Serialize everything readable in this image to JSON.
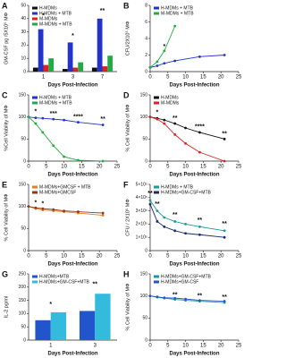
{
  "chart_data": [
    {
      "panel": "A",
      "type": "bar",
      "ylabel": "GM-CSF pg /5X10⁵ MΦ",
      "xlabel": "Days Post-Infection",
      "categories": [
        "1",
        "3",
        "7"
      ],
      "ylim": [
        0,
        50
      ],
      "yticks": [
        0,
        10,
        20,
        30,
        40,
        50
      ],
      "series": [
        {
          "name": "H-MDMs",
          "color": "#111111",
          "values": [
            3,
            2,
            3
          ]
        },
        {
          "name": "H-MDMs + MTB",
          "color": "#2233cc",
          "values": [
            32,
            22,
            40
          ]
        },
        {
          "name": "M-MDMs",
          "color": "#dd2222",
          "values": [
            5,
            3,
            4
          ]
        },
        {
          "name": "M-MDMs + MTB",
          "color": "#22aa44",
          "values": [
            10,
            7,
            12
          ]
        }
      ],
      "annotations": [
        {
          "text": "*",
          "x": "1",
          "y": 42
        },
        {
          "text": "*",
          "x": "3",
          "y": 27
        },
        {
          "text": "**",
          "x": "7",
          "y": 46
        }
      ]
    },
    {
      "panel": "B",
      "type": "line",
      "ylabel": "CFU/2X10⁵ MΦ",
      "xlabel": "Days Post-Infection",
      "x": [
        0,
        2,
        4,
        7,
        14,
        21
      ],
      "xlim": [
        0,
        25
      ],
      "xticks": [
        0,
        5,
        10,
        15,
        20,
        25
      ],
      "ylim": [
        0,
        8
      ],
      "yticks": [
        0,
        2,
        4,
        6,
        8
      ],
      "series": [
        {
          "name": "H-MDMs + MTB",
          "color": "#2233cc",
          "values": [
            0.5,
            0.7,
            1,
            1.3,
            1.8,
            2
          ]
        },
        {
          "name": "M-MDMs + MTB",
          "color": "#22aa44",
          "values": [
            0.5,
            1.2,
            2.5,
            5.5,
            null,
            null
          ]
        }
      ],
      "annotations": [
        {
          "text": "*",
          "x": 4,
          "y": 3
        }
      ]
    },
    {
      "panel": "C",
      "type": "line",
      "ylabel": "%Cell Viability of MΦ",
      "xlabel": "Days Post-Infection",
      "x": [
        0,
        2,
        4,
        7,
        10,
        14,
        21
      ],
      "xlim": [
        0,
        25
      ],
      "xticks": [
        0,
        5,
        10,
        15,
        20,
        25
      ],
      "ylim": [
        0,
        150
      ],
      "yticks": [
        0,
        50,
        100,
        150
      ],
      "series": [
        {
          "name": "H-MDMs + MTB",
          "color": "#2233cc",
          "values": [
            100,
            98,
            97,
            95,
            93,
            88,
            82
          ]
        },
        {
          "name": "M-MDMs + MTB",
          "color": "#22aa44",
          "values": [
            100,
            85,
            65,
            35,
            10,
            2,
            0
          ]
        }
      ],
      "annotations": [
        {
          "text": "*",
          "x": 2,
          "y": 112
        },
        {
          "text": "***",
          "x": 7,
          "y": 107
        },
        {
          "text": "****",
          "x": 14,
          "y": 100
        },
        {
          "text": "**",
          "x": 21,
          "y": 95
        }
      ]
    },
    {
      "panel": "D",
      "type": "line",
      "ylabel": "% Cell Viability of MΦ",
      "xlabel": "Days Post-Infection",
      "x": [
        0,
        2,
        4,
        7,
        10,
        14,
        21
      ],
      "xlim": [
        0,
        25
      ],
      "xticks": [
        0,
        5,
        10,
        15,
        20,
        25
      ],
      "ylim": [
        0,
        150
      ],
      "yticks": [
        0,
        50,
        100,
        150
      ],
      "series": [
        {
          "name": "H-MDMs",
          "color": "#111111",
          "values": [
            100,
            97,
            93,
            85,
            75,
            65,
            50
          ]
        },
        {
          "name": "M-MDMs",
          "color": "#dd2222",
          "values": [
            100,
            95,
            85,
            60,
            40,
            20,
            0
          ]
        }
      ],
      "annotations": [
        {
          "text": "*",
          "x": 2,
          "y": 110
        },
        {
          "text": "**",
          "x": 7,
          "y": 97
        },
        {
          "text": "****",
          "x": 14,
          "y": 78
        },
        {
          "text": "**",
          "x": 21,
          "y": 62
        }
      ]
    },
    {
      "panel": "E",
      "type": "line",
      "ylabel": "% Cell Viability of MΦ",
      "xlabel": "Days Post-Infection",
      "x": [
        0,
        2,
        4,
        7,
        10,
        14,
        21
      ],
      "xlim": [
        0,
        25
      ],
      "xticks": [
        0,
        5,
        10,
        15,
        20,
        25
      ],
      "ylim": [
        0,
        150
      ],
      "yticks": [
        0,
        50,
        100,
        150
      ],
      "series": [
        {
          "name": "M-MDMs+GMCSF + MTB",
          "color": "#e08020",
          "values": [
            100,
            95,
            92,
            90,
            88,
            85,
            80
          ]
        },
        {
          "name": "M-MDMs+GMCSF",
          "color": "#8b3a1a",
          "values": [
            100,
            97,
            95,
            93,
            90,
            88,
            85
          ]
        }
      ],
      "annotations": [
        {
          "text": "*",
          "x": 2,
          "y": 108
        },
        {
          "text": "*",
          "x": 4,
          "y": 106
        }
      ]
    },
    {
      "panel": "F",
      "type": "line",
      "ylabel": "CFU / 2X10⁵ MΦ",
      "xlabel": "Days Post-Infection",
      "x": [
        0,
        2,
        4,
        7,
        10,
        14,
        21
      ],
      "xlim": [
        0,
        25
      ],
      "xticks": [
        0,
        5,
        10,
        15,
        20,
        25
      ],
      "ylim": [
        0,
        5
      ],
      "yticks": [
        {
          "value": 0,
          "label": "0"
        },
        {
          "value": 1,
          "label": "1×10⁵"
        },
        {
          "value": 2,
          "label": "2×10⁵"
        },
        {
          "value": 3,
          "label": "3×10⁵"
        },
        {
          "value": 4,
          "label": "4×10⁵"
        },
        {
          "value": 5,
          "label": "5×10⁵"
        }
      ],
      "series": [
        {
          "name": "H-MDMs + MTB",
          "color": "#1a9a9a",
          "values": [
            3.8,
            3,
            2.5,
            2.2,
            2,
            1.8,
            1.5
          ]
        },
        {
          "name": "H-MDMs+GM-CSF+MTB",
          "color": "#1a2a6a",
          "values": [
            3.5,
            2.2,
            1.8,
            1.5,
            1.3,
            1.2,
            1
          ]
        }
      ],
      "annotations": [
        {
          "text": "**",
          "x": 0,
          "y": 4.3
        },
        {
          "text": "**",
          "x": 2,
          "y": 3.5
        },
        {
          "text": "**",
          "x": 7,
          "y": 2.7
        },
        {
          "text": "**",
          "x": 14,
          "y": 2.3
        },
        {
          "text": "**",
          "x": 21,
          "y": 2
        }
      ]
    },
    {
      "panel": "G",
      "type": "bar",
      "ylabel": "IL-2 pg/ml",
      "xlabel": "Days Post-Infection",
      "categories": [
        "1",
        "3"
      ],
      "ylim": [
        0,
        250
      ],
      "yticks": [
        0,
        50,
        100,
        150,
        200,
        250
      ],
      "series": [
        {
          "name": "H-MDMs+MTB",
          "color": "#2255cc",
          "values": [
            75,
            110
          ]
        },
        {
          "name": "H-MDMs+GM-CSF+MTB",
          "color": "#33bbdd",
          "values": [
            105,
            175
          ]
        }
      ],
      "annotations": [
        {
          "text": "*",
          "x": "1",
          "y": 135
        },
        {
          "text": "**",
          "x": "3",
          "y": 210
        }
      ]
    },
    {
      "panel": "H",
      "type": "line",
      "ylabel": "% Cell Viability of MΦ",
      "xlabel": "Days Post-Infection",
      "x": [
        0,
        2,
        4,
        7,
        10,
        14,
        21
      ],
      "xlim": [
        0,
        25
      ],
      "xticks": [
        0,
        5,
        10,
        15,
        20,
        25
      ],
      "ylim": [
        0,
        150
      ],
      "yticks": [
        0,
        50,
        100,
        150
      ],
      "series": [
        {
          "name": "H-MDMs+GM-CSF+MTB",
          "color": "#1a9a9a",
          "values": [
            100,
            97,
            95,
            92,
            90,
            88,
            85
          ]
        },
        {
          "name": "H-MDMs+GM-CSF",
          "color": "#2255cc",
          "values": [
            100,
            98,
            96,
            95,
            93,
            90,
            88
          ]
        }
      ],
      "annotations": [
        {
          "text": "**",
          "x": 7,
          "y": 102
        },
        {
          "text": "**",
          "x": 14,
          "y": 100
        },
        {
          "text": "**",
          "x": 21,
          "y": 97
        }
      ]
    }
  ]
}
